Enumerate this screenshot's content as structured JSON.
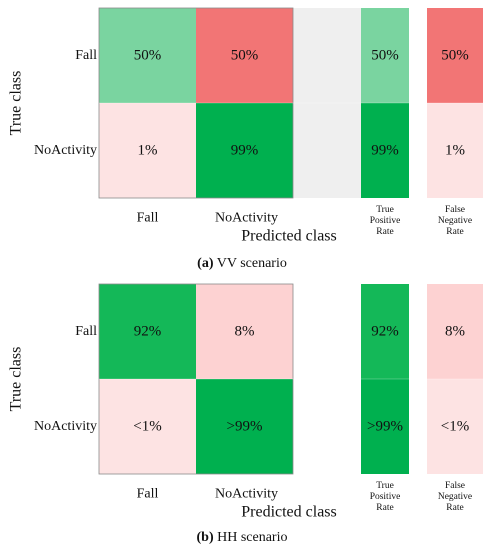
{
  "panels": [
    {
      "id": "a",
      "caption_label": "(a)",
      "caption_text": "VV scenario",
      "chart_data": {
        "type": "heatmap",
        "ylabel": "True class",
        "xlabel": "Predicted class",
        "rows": [
          "Fall",
          "NoActivity"
        ],
        "cols": [
          "Fall",
          "NoActivity"
        ],
        "cells": [
          [
            "50%",
            "50%"
          ],
          [
            "1%",
            "99%"
          ]
        ],
        "cell_colors": [
          [
            "#7ad4a0",
            "#f27575"
          ],
          [
            "#fde3e3",
            "#00b04f"
          ]
        ],
        "tpr_header": "True Positive Rate",
        "tpr": [
          "50%",
          "99%"
        ],
        "tpr_colors": [
          "#7ad4a0",
          "#00b04f"
        ],
        "fnr_header": "False Negative Rate",
        "fnr": [
          "50%",
          "1%"
        ],
        "fnr_colors": [
          "#f27575",
          "#fde3e3"
        ],
        "gap_fill": "#efefef"
      }
    },
    {
      "id": "b",
      "caption_label": "(b)",
      "caption_text": "HH scenario",
      "chart_data": {
        "type": "heatmap",
        "ylabel": "True class",
        "xlabel": "Predicted class",
        "rows": [
          "Fall",
          "NoActivity"
        ],
        "cols": [
          "Fall",
          "NoActivity"
        ],
        "cells": [
          [
            "92%",
            "8%"
          ],
          [
            "<1%",
            ">99%"
          ]
        ],
        "cell_colors": [
          [
            "#14b858",
            "#fdd2d2"
          ],
          [
            "#fde3e3",
            "#00b04f"
          ]
        ],
        "tpr_header": "True Positive Rate",
        "tpr": [
          "92%",
          ">99%"
        ],
        "tpr_colors": [
          "#14b858",
          "#00b04f"
        ],
        "fnr_header": "False Negative Rate",
        "fnr": [
          "8%",
          "<1%"
        ],
        "fnr_colors": [
          "#fdd2d2",
          "#fde3e3"
        ],
        "gap_fill": "#ffffff"
      }
    }
  ]
}
